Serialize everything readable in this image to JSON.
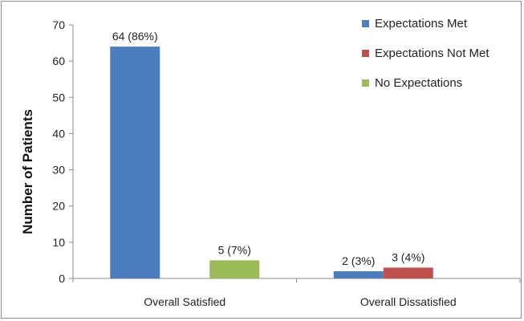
{
  "chart_data": {
    "type": "bar",
    "categories": [
      "Overall Satisfied",
      "Overall Dissatisfied"
    ],
    "series": [
      {
        "name": "Expectations Met",
        "color": "#4a7ebf",
        "values": [
          64,
          2
        ],
        "labels": [
          "64 (86%)",
          "2 (3%)"
        ]
      },
      {
        "name": "Expectations Not Met",
        "color": "#c0504d",
        "values": [
          0,
          3
        ],
        "labels": [
          "",
          "3 (4%)"
        ]
      },
      {
        "name": "No Expectations",
        "color": "#9bbb59",
        "values": [
          5,
          0
        ],
        "labels": [
          "5 (7%)",
          ""
        ]
      }
    ],
    "ylabel": "Number of Patients",
    "ylim": [
      0,
      70
    ],
    "yticks": [
      "0",
      "10",
      "20",
      "30",
      "40",
      "50",
      "60",
      "70"
    ],
    "grid": false,
    "legend": "top-right"
  }
}
